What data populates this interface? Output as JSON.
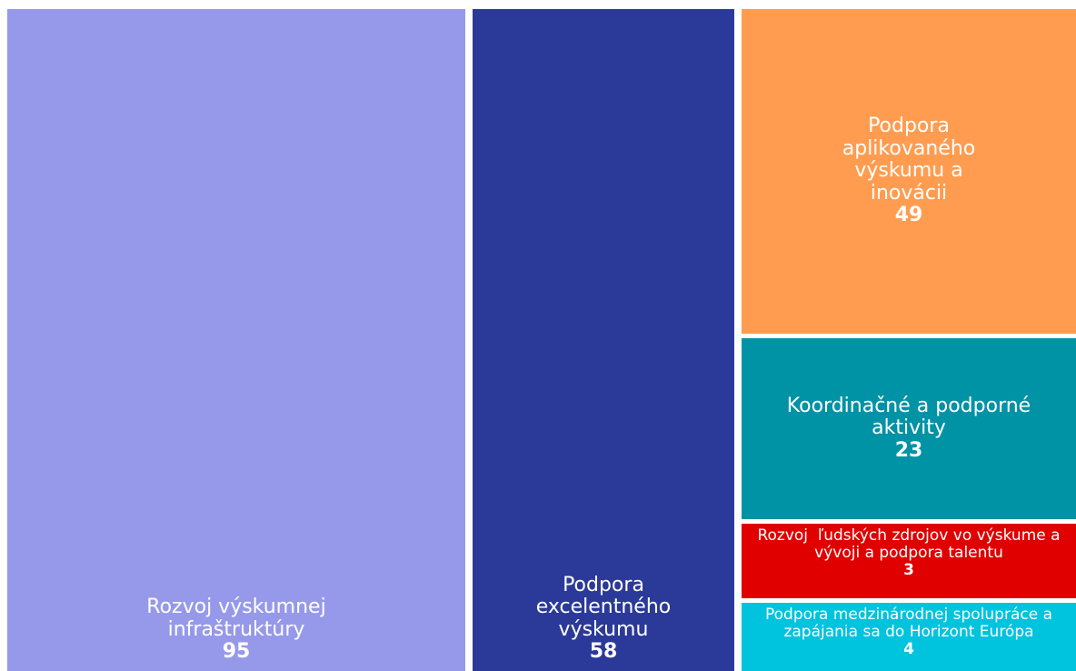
{
  "chart_data": {
    "type": "treemap",
    "categories": [
      "Rozvoj výskumnej infraštruktúry",
      "Podpora excelentného výskumu",
      "Podpora aplikovaného výskumu a inovácii",
      "Koordinačné a podporné aktivity",
      "Rozvoj  ľudských zdrojov vo výskume a vývoji a podpora talentu",
      "Podpora medzinárodnej spolupráce a zapájania sa do Horizont Európa"
    ],
    "values": [
      95,
      58,
      49,
      23,
      3,
      4
    ],
    "colors": [
      "#9699e9",
      "#2b3a98",
      "#ff9c50",
      "#0092a5",
      "#e00000",
      "#00c3de"
    ]
  }
}
